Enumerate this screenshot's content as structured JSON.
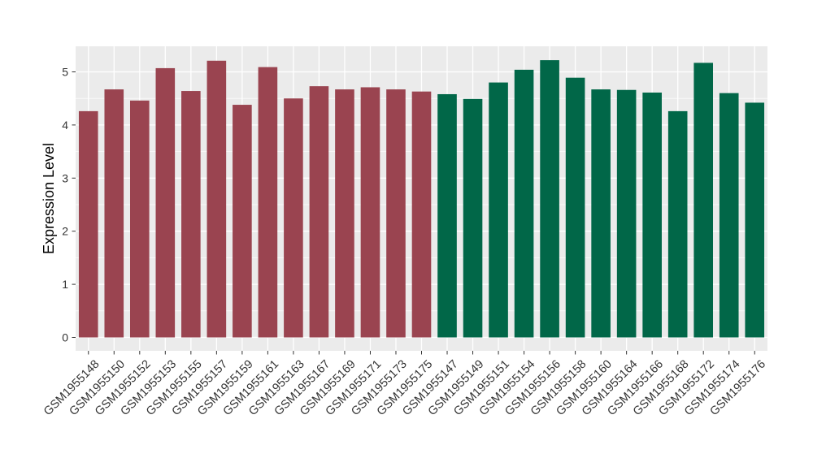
{
  "chart_data": {
    "type": "bar",
    "title": "",
    "xlabel": "",
    "ylabel": "Expression Level",
    "y_ticks": [
      0,
      1,
      2,
      3,
      4,
      5
    ],
    "ylim": [
      0,
      5.48
    ],
    "grid": "white major+minor horizontal lines and major vertical lines per category on gray panel",
    "legend_position": "none",
    "panel_background": "#EBEBEB",
    "grid_color": "#FFFFFF",
    "axis_text_color": "#333333",
    "colors": {
      "red": "#9A4450",
      "green": "#016748"
    },
    "categories": [
      "GSM1955148",
      "GSM1955150",
      "GSM1955152",
      "GSM1955153",
      "GSM1955155",
      "GSM1955157",
      "GSM1955159",
      "GSM1955161",
      "GSM1955163",
      "GSM1955167",
      "GSM1955169",
      "GSM1955171",
      "GSM1955173",
      "GSM1955175",
      "GSM1955147",
      "GSM1955149",
      "GSM1955151",
      "GSM1955154",
      "GSM1955156",
      "GSM1955158",
      "GSM1955160",
      "GSM1955164",
      "GSM1955166",
      "GSM1955168",
      "GSM1955172",
      "GSM1955174",
      "GSM1955176"
    ],
    "values": [
      4.26,
      4.67,
      4.46,
      5.07,
      4.64,
      5.21,
      4.38,
      5.09,
      4.5,
      4.73,
      4.67,
      4.71,
      4.67,
      4.63,
      4.58,
      4.49,
      4.8,
      5.04,
      5.22,
      4.89,
      4.67,
      4.66,
      4.61,
      4.26,
      5.17,
      4.6,
      4.42
    ],
    "bar_groups": [
      "red",
      "red",
      "red",
      "red",
      "red",
      "red",
      "red",
      "red",
      "red",
      "red",
      "red",
      "red",
      "red",
      "red",
      "green",
      "green",
      "green",
      "green",
      "green",
      "green",
      "green",
      "green",
      "green",
      "green",
      "green",
      "green",
      "green"
    ]
  }
}
